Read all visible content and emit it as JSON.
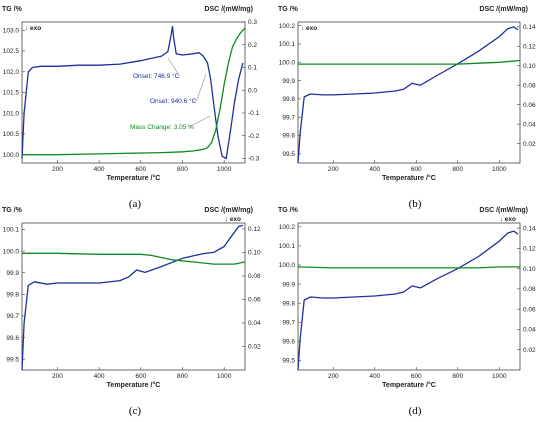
{
  "chart_data": [
    {
      "type": "line",
      "panel_label": "(a)",
      "ylabel_left": "TG /%",
      "ylabel_right": "DSC /(mW/mg)",
      "xlabel": "Temperature /°C",
      "exo_label": "↓ exo",
      "exo_side": "left",
      "xlim": [
        30,
        1100
      ],
      "ylim_left": [
        99.8,
        103.2
      ],
      "ylim_right": [
        -0.32,
        0.3
      ],
      "xticks": [
        200,
        400,
        600,
        800,
        1000
      ],
      "yticks_left": [
        100.0,
        100.5,
        101.0,
        101.5,
        102.0,
        102.5,
        103.0
      ],
      "yticks_right": [
        -0.3,
        -0.2,
        -0.1,
        0.0,
        0.1,
        0.2,
        0.3
      ],
      "series": [
        {
          "color": "#1f2f9f",
          "axis": "right",
          "x": [
            30,
            40,
            60,
            80,
            120,
            200,
            300,
            400,
            500,
            600,
            650,
            700,
            730,
            745,
            752,
            758,
            770,
            800,
            850,
            880,
            900,
            920,
            935,
            950,
            970,
            990,
            1010,
            1030,
            1050,
            1070,
            1090
          ],
          "y": [
            -0.3,
            -0.1,
            0.08,
            0.1,
            0.105,
            0.105,
            0.11,
            0.11,
            0.115,
            0.13,
            0.14,
            0.15,
            0.17,
            0.24,
            0.28,
            0.23,
            0.16,
            0.155,
            0.16,
            0.165,
            0.15,
            0.12,
            0.05,
            -0.06,
            -0.2,
            -0.29,
            -0.3,
            -0.18,
            -0.05,
            0.05,
            0.12
          ]
        },
        {
          "color": "#0e8a1e",
          "axis": "left",
          "x": [
            30,
            200,
            400,
            600,
            700,
            800,
            850,
            900,
            920,
            940,
            960,
            980,
            1000,
            1020,
            1040,
            1060,
            1080,
            1100
          ],
          "y": [
            100.0,
            100.0,
            100.02,
            100.04,
            100.05,
            100.07,
            100.09,
            100.13,
            100.17,
            100.3,
            100.6,
            101.1,
            101.7,
            102.2,
            102.6,
            102.8,
            102.95,
            103.05
          ]
        }
      ],
      "annotations": [
        {
          "text": "Onset: 746.9 °C",
          "x": 746.9,
          "color": "#1f2f9f"
        },
        {
          "text": "Onset: 940.6 °C",
          "x": 940.6,
          "color": "#1f2f9f"
        },
        {
          "text": "Mass Change: 3.05 %",
          "color": "#0e8a1e"
        }
      ]
    },
    {
      "type": "line",
      "panel_label": "(b)",
      "ylabel_left": "TG /%",
      "ylabel_right": "DSC /(mW/mg)",
      "xlabel": "Temperature /°C",
      "exo_label": "↓ exo",
      "exo_side": "left",
      "xlim": [
        30,
        1100
      ],
      "ylim_left": [
        99.45,
        100.22
      ],
      "ylim_right": [
        0.0,
        0.145
      ],
      "xticks": [
        200,
        400,
        600,
        800,
        1000
      ],
      "yticks_left": [
        99.5,
        99.6,
        99.7,
        99.8,
        99.9,
        100.0,
        100.1,
        100.2
      ],
      "yticks_right": [
        0.02,
        0.04,
        0.06,
        0.08,
        0.1,
        0.12,
        0.14
      ],
      "series": [
        {
          "color": "#1f2f9f",
          "axis": "right",
          "x": [
            30,
            40,
            60,
            90,
            150,
            200,
            300,
            400,
            500,
            540,
            560,
            580,
            620,
            700,
            800,
            900,
            1000,
            1040,
            1070,
            1090
          ],
          "y": [
            0.0,
            0.03,
            0.068,
            0.071,
            0.07,
            0.07,
            0.071,
            0.072,
            0.074,
            0.076,
            0.079,
            0.082,
            0.08,
            0.09,
            0.102,
            0.115,
            0.13,
            0.138,
            0.14,
            0.137
          ]
        },
        {
          "color": "#0e8a1e",
          "axis": "left",
          "x": [
            30,
            200,
            400,
            600,
            800,
            900,
            1000,
            1100
          ],
          "y": [
            99.99,
            99.99,
            99.99,
            99.99,
            99.99,
            99.995,
            100.0,
            100.01
          ]
        }
      ]
    },
    {
      "type": "line",
      "panel_label": "(c)",
      "ylabel_left": "TG /%",
      "ylabel_right": "DSC /(mW/mg)",
      "xlabel": "Temperature /°C",
      "exo_label": "↓ exo",
      "exo_side": "right",
      "xlim": [
        30,
        1100
      ],
      "ylim_left": [
        99.45,
        100.13
      ],
      "ylim_right": [
        0.0,
        0.125
      ],
      "xticks": [
        200,
        400,
        600,
        800,
        1000
      ],
      "yticks_left": [
        99.5,
        99.6,
        99.7,
        99.8,
        99.9,
        100.0,
        100.1
      ],
      "yticks_right": [
        0.02,
        0.04,
        0.06,
        0.08,
        0.1,
        0.12
      ],
      "series": [
        {
          "color": "#1f2f9f",
          "axis": "right",
          "x": [
            30,
            40,
            60,
            90,
            150,
            200,
            300,
            400,
            500,
            540,
            560,
            580,
            620,
            700,
            800,
            900,
            950,
            1000,
            1040,
            1070,
            1090
          ],
          "y": [
            0.0,
            0.04,
            0.072,
            0.075,
            0.073,
            0.074,
            0.074,
            0.074,
            0.076,
            0.079,
            0.082,
            0.085,
            0.083,
            0.088,
            0.095,
            0.099,
            0.1,
            0.105,
            0.115,
            0.122,
            0.123
          ]
        },
        {
          "color": "#0e8a1e",
          "axis": "left",
          "x": [
            30,
            200,
            400,
            600,
            650,
            700,
            750,
            800,
            850,
            900,
            950,
            1000,
            1050,
            1100
          ],
          "y": [
            99.99,
            99.99,
            99.985,
            99.985,
            99.98,
            99.97,
            99.96,
            99.955,
            99.95,
            99.945,
            99.94,
            99.94,
            99.94,
            99.95
          ]
        }
      ]
    },
    {
      "type": "line",
      "panel_label": "(d)",
      "ylabel_left": "TG /%",
      "ylabel_right": "DSC /(mW/mg)",
      "xlabel": "Temperature /°C",
      "exo_label": "↓ exo",
      "exo_side": "right",
      "xlim": [
        30,
        1100
      ],
      "ylim_left": [
        99.45,
        100.22
      ],
      "ylim_right": [
        0.0,
        0.145
      ],
      "xticks": [
        200,
        400,
        600,
        800,
        1000
      ],
      "yticks_left": [
        99.5,
        99.6,
        99.7,
        99.8,
        99.9,
        100.0,
        100.1,
        100.2
      ],
      "yticks_right": [
        0.02,
        0.04,
        0.06,
        0.08,
        0.1,
        0.12,
        0.14
      ],
      "series": [
        {
          "color": "#1f2f9f",
          "axis": "right",
          "x": [
            30,
            40,
            60,
            90,
            150,
            200,
            300,
            400,
            500,
            540,
            560,
            580,
            620,
            700,
            800,
            900,
            1000,
            1040,
            1070,
            1090
          ],
          "y": [
            0.0,
            0.03,
            0.069,
            0.072,
            0.071,
            0.071,
            0.072,
            0.073,
            0.075,
            0.077,
            0.08,
            0.083,
            0.081,
            0.09,
            0.1,
            0.112,
            0.127,
            0.135,
            0.137,
            0.134
          ]
        },
        {
          "color": "#0e8a1e",
          "axis": "left",
          "x": [
            30,
            200,
            400,
            600,
            800,
            900,
            1000,
            1100
          ],
          "y": [
            99.99,
            99.985,
            99.985,
            99.985,
            99.985,
            99.985,
            99.99,
            99.99
          ]
        }
      ]
    }
  ]
}
